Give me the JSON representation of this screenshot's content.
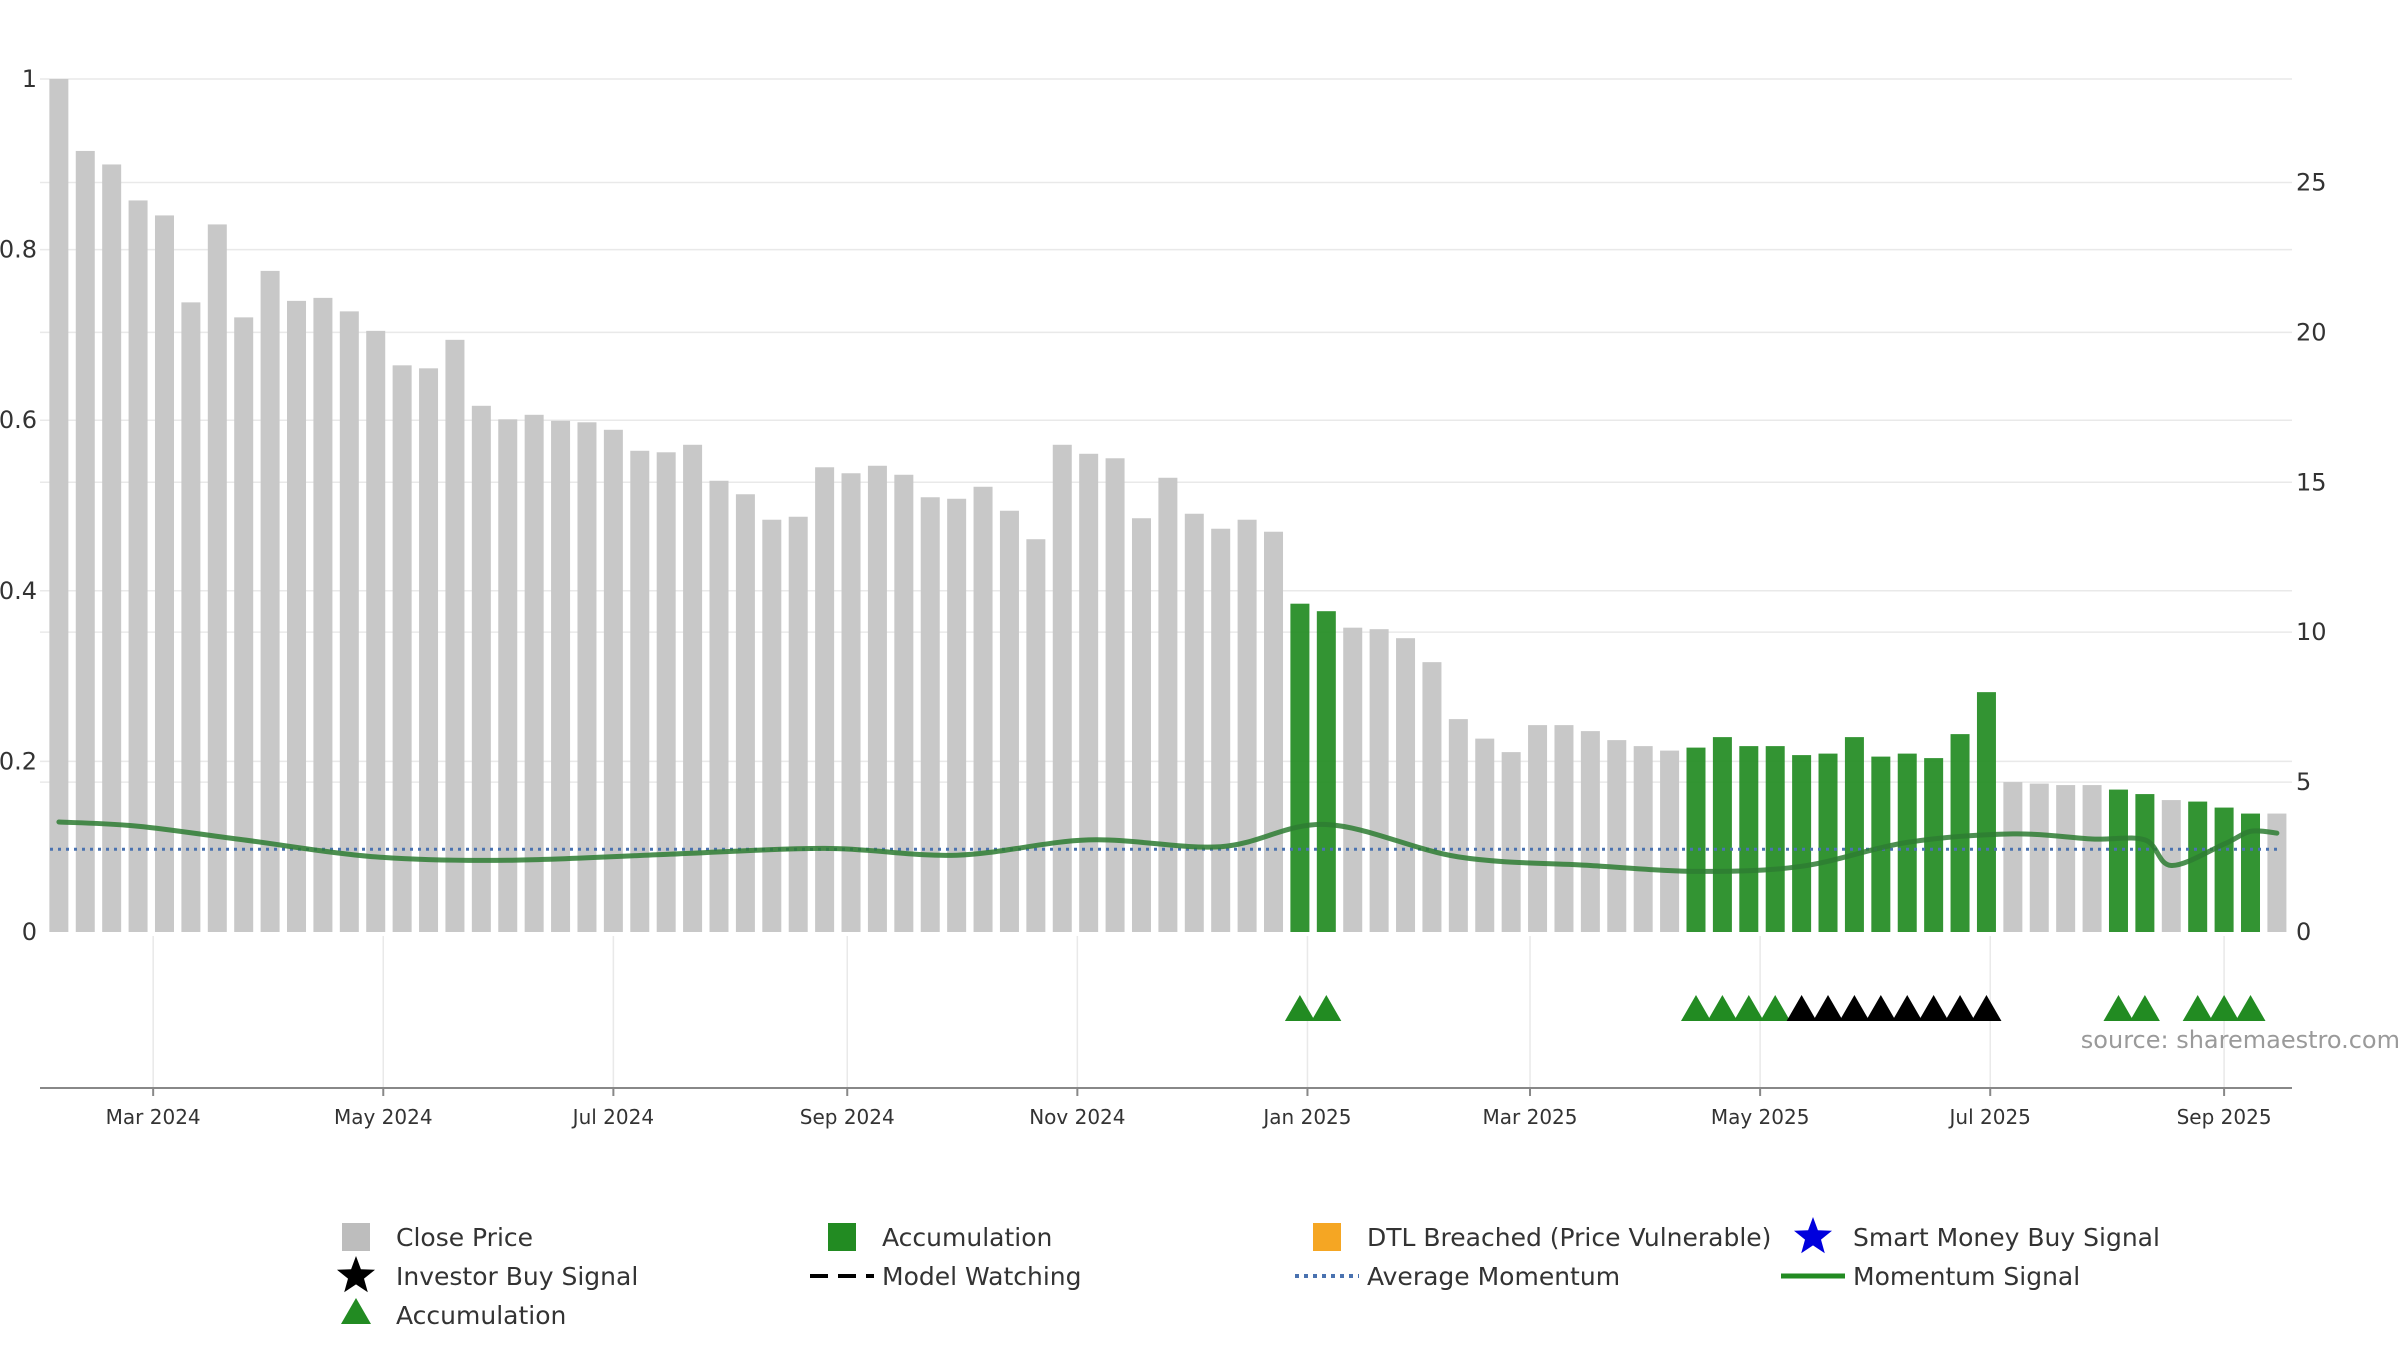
{
  "chart_data": {
    "type": "bar",
    "title": "",
    "xlabel": "",
    "ylabel": "",
    "left_axis": {
      "ylim": [
        0,
        1
      ],
      "ticks": [
        "0",
        "0.2",
        "0.4",
        "0.6",
        "0.8",
        "1"
      ]
    },
    "right_axis": {
      "ylim": [
        0,
        28.45
      ],
      "ticks": [
        "0",
        "5",
        "10",
        "15",
        "20",
        "25"
      ]
    },
    "x_tick_labels": [
      "Mar 2024",
      "May 2024",
      "Jul 2024",
      "Sep 2024",
      "Nov 2024",
      "Jan 2025",
      "Mar 2025",
      "May 2025",
      "Jul 2025",
      "Sep 2025"
    ],
    "grid": true,
    "legend_placement": "bottom",
    "source_note": "source: sharemaestro.com",
    "colors": {
      "close_price": "#c8c8c8",
      "accumulation": "#228b22",
      "dtl_breached": "#f5a623",
      "smart_money": "#0000dd",
      "investor_signal": "#000000",
      "momentum": "#2e7d32",
      "average_momentum": "#4a72b0",
      "grid": "#e9e9e9"
    },
    "close_price": [
      {
        "x": "2024-02-05",
        "value": 28.45,
        "status": "normal"
      },
      {
        "x": "2024-02-12",
        "value": 26.05,
        "status": "normal"
      },
      {
        "x": "2024-02-19",
        "value": 25.6,
        "status": "normal"
      },
      {
        "x": "2024-02-26",
        "value": 24.4,
        "status": "normal"
      },
      {
        "x": "2024-03-04",
        "value": 23.9,
        "status": "normal"
      },
      {
        "x": "2024-03-11",
        "value": 21.0,
        "status": "normal"
      },
      {
        "x": "2024-03-18",
        "value": 23.6,
        "status": "normal"
      },
      {
        "x": "2024-03-25",
        "value": 20.5,
        "status": "normal"
      },
      {
        "x": "2024-04-01",
        "value": 22.05,
        "status": "normal"
      },
      {
        "x": "2024-04-08",
        "value": 21.05,
        "status": "normal"
      },
      {
        "x": "2024-04-15",
        "value": 21.15,
        "status": "normal"
      },
      {
        "x": "2024-04-22",
        "value": 20.7,
        "status": "normal"
      },
      {
        "x": "2024-04-29",
        "value": 20.05,
        "status": "normal"
      },
      {
        "x": "2024-05-06",
        "value": 18.9,
        "status": "normal"
      },
      {
        "x": "2024-05-13",
        "value": 18.8,
        "status": "normal"
      },
      {
        "x": "2024-05-20",
        "value": 19.75,
        "status": "normal"
      },
      {
        "x": "2024-05-27",
        "value": 17.55,
        "status": "normal"
      },
      {
        "x": "2024-06-03",
        "value": 17.1,
        "status": "normal"
      },
      {
        "x": "2024-06-10",
        "value": 17.25,
        "status": "normal"
      },
      {
        "x": "2024-06-17",
        "value": 17.05,
        "status": "normal"
      },
      {
        "x": "2024-06-24",
        "value": 17.0,
        "status": "normal"
      },
      {
        "x": "2024-07-01",
        "value": 16.75,
        "status": "normal"
      },
      {
        "x": "2024-07-08",
        "value": 16.05,
        "status": "normal"
      },
      {
        "x": "2024-07-15",
        "value": 16.0,
        "status": "normal"
      },
      {
        "x": "2024-07-22",
        "value": 16.25,
        "status": "normal"
      },
      {
        "x": "2024-07-29",
        "value": 15.05,
        "status": "normal"
      },
      {
        "x": "2024-08-05",
        "value": 14.6,
        "status": "normal"
      },
      {
        "x": "2024-08-12",
        "value": 13.75,
        "status": "normal"
      },
      {
        "x": "2024-08-19",
        "value": 13.85,
        "status": "normal"
      },
      {
        "x": "2024-08-26",
        "value": 15.5,
        "status": "normal"
      },
      {
        "x": "2024-09-02",
        "value": 15.3,
        "status": "normal"
      },
      {
        "x": "2024-09-09",
        "value": 15.55,
        "status": "normal"
      },
      {
        "x": "2024-09-16",
        "value": 15.25,
        "status": "normal"
      },
      {
        "x": "2024-09-23",
        "value": 14.5,
        "status": "normal"
      },
      {
        "x": "2024-09-30",
        "value": 14.45,
        "status": "normal"
      },
      {
        "x": "2024-10-07",
        "value": 14.85,
        "status": "normal"
      },
      {
        "x": "2024-10-14",
        "value": 14.05,
        "status": "normal"
      },
      {
        "x": "2024-10-21",
        "value": 13.1,
        "status": "normal"
      },
      {
        "x": "2024-10-28",
        "value": 16.25,
        "status": "normal"
      },
      {
        "x": "2024-11-04",
        "value": 15.95,
        "status": "normal"
      },
      {
        "x": "2024-11-11",
        "value": 15.8,
        "status": "normal"
      },
      {
        "x": "2024-11-18",
        "value": 13.8,
        "status": "normal"
      },
      {
        "x": "2024-11-25",
        "value": 15.15,
        "status": "normal"
      },
      {
        "x": "2024-12-02",
        "value": 13.95,
        "status": "normal"
      },
      {
        "x": "2024-12-09",
        "value": 13.45,
        "status": "normal"
      },
      {
        "x": "2024-12-16",
        "value": 13.75,
        "status": "normal"
      },
      {
        "x": "2024-12-23",
        "value": 13.35,
        "status": "normal"
      },
      {
        "x": "2024-12-30",
        "value": 10.95,
        "status": "accumulation"
      },
      {
        "x": "2025-01-06",
        "value": 10.7,
        "status": "accumulation"
      },
      {
        "x": "2025-01-13",
        "value": 10.15,
        "status": "normal"
      },
      {
        "x": "2025-01-20",
        "value": 10.1,
        "status": "normal"
      },
      {
        "x": "2025-01-27",
        "value": 9.8,
        "status": "normal"
      },
      {
        "x": "2025-02-03",
        "value": 9.0,
        "status": "normal"
      },
      {
        "x": "2025-02-10",
        "value": 7.1,
        "status": "normal"
      },
      {
        "x": "2025-02-17",
        "value": 6.45,
        "status": "normal"
      },
      {
        "x": "2025-02-24",
        "value": 6.0,
        "status": "normal"
      },
      {
        "x": "2025-03-03",
        "value": 6.9,
        "status": "normal"
      },
      {
        "x": "2025-03-10",
        "value": 6.9,
        "status": "normal"
      },
      {
        "x": "2025-03-17",
        "value": 6.7,
        "status": "normal"
      },
      {
        "x": "2025-03-24",
        "value": 6.4,
        "status": "normal"
      },
      {
        "x": "2025-03-31",
        "value": 6.2,
        "status": "normal"
      },
      {
        "x": "2025-04-07",
        "value": 6.05,
        "status": "normal"
      },
      {
        "x": "2025-04-14",
        "value": 6.15,
        "status": "accumulation"
      },
      {
        "x": "2025-04-21",
        "value": 6.5,
        "status": "accumulation"
      },
      {
        "x": "2025-04-28",
        "value": 6.2,
        "status": "accumulation"
      },
      {
        "x": "2025-05-05",
        "value": 6.2,
        "status": "accumulation"
      },
      {
        "x": "2025-05-12",
        "value": 5.9,
        "status": "accumulation"
      },
      {
        "x": "2025-05-19",
        "value": 5.95,
        "status": "accumulation"
      },
      {
        "x": "2025-05-26",
        "value": 6.5,
        "status": "accumulation"
      },
      {
        "x": "2025-06-02",
        "value": 5.85,
        "status": "accumulation"
      },
      {
        "x": "2025-06-09",
        "value": 5.95,
        "status": "accumulation"
      },
      {
        "x": "2025-06-16",
        "value": 5.8,
        "status": "accumulation"
      },
      {
        "x": "2025-06-23",
        "value": 6.6,
        "status": "accumulation"
      },
      {
        "x": "2025-06-30",
        "value": 8.0,
        "status": "accumulation"
      },
      {
        "x": "2025-07-07",
        "value": 5.0,
        "status": "normal"
      },
      {
        "x": "2025-07-14",
        "value": 4.95,
        "status": "normal"
      },
      {
        "x": "2025-07-21",
        "value": 4.9,
        "status": "normal"
      },
      {
        "x": "2025-07-28",
        "value": 4.9,
        "status": "normal"
      },
      {
        "x": "2025-08-04",
        "value": 4.75,
        "status": "accumulation"
      },
      {
        "x": "2025-08-11",
        "value": 4.6,
        "status": "accumulation"
      },
      {
        "x": "2025-08-18",
        "value": 4.4,
        "status": "normal"
      },
      {
        "x": "2025-08-25",
        "value": 4.35,
        "status": "accumulation"
      },
      {
        "x": "2025-09-01",
        "value": 4.15,
        "status": "accumulation"
      },
      {
        "x": "2025-09-08",
        "value": 3.95,
        "status": "accumulation"
      },
      {
        "x": "2025-09-15",
        "value": 3.95,
        "status": "normal"
      }
    ],
    "momentum_signal": [
      {
        "x": "2024-02-05",
        "value": 0.129
      },
      {
        "x": "2024-02-26",
        "value": 0.124
      },
      {
        "x": "2024-03-25",
        "value": 0.108
      },
      {
        "x": "2024-04-29",
        "value": 0.088
      },
      {
        "x": "2024-06-03",
        "value": 0.084
      },
      {
        "x": "2024-07-15",
        "value": 0.091
      },
      {
        "x": "2024-08-26",
        "value": 0.098
      },
      {
        "x": "2024-09-30",
        "value": 0.09
      },
      {
        "x": "2024-11-04",
        "value": 0.108
      },
      {
        "x": "2024-12-09",
        "value": 0.1
      },
      {
        "x": "2025-01-06",
        "value": 0.126
      },
      {
        "x": "2025-02-10",
        "value": 0.088
      },
      {
        "x": "2025-03-17",
        "value": 0.078
      },
      {
        "x": "2025-04-14",
        "value": 0.071
      },
      {
        "x": "2025-05-12",
        "value": 0.077
      },
      {
        "x": "2025-06-09",
        "value": 0.105
      },
      {
        "x": "2025-07-07",
        "value": 0.115
      },
      {
        "x": "2025-07-28",
        "value": 0.109
      },
      {
        "x": "2025-08-11",
        "value": 0.108
      },
      {
        "x": "2025-08-18",
        "value": 0.078
      },
      {
        "x": "2025-09-01",
        "value": 0.103
      },
      {
        "x": "2025-09-08",
        "value": 0.118
      },
      {
        "x": "2025-09-15",
        "value": 0.116
      }
    ],
    "average_momentum": 0.097,
    "accumulation_markers": [
      "2024-12-30",
      "2025-01-06",
      "2025-04-14",
      "2025-04-21",
      "2025-04-28",
      "2025-05-05",
      "2025-08-04",
      "2025-08-11",
      "2025-08-25",
      "2025-09-01",
      "2025-09-08"
    ],
    "investor_markers": [
      "2025-05-12",
      "2025-05-19",
      "2025-05-26",
      "2025-06-02",
      "2025-06-09",
      "2025-06-16",
      "2025-06-23",
      "2025-06-30"
    ],
    "legend": [
      {
        "label": "Close Price",
        "symbol": "square",
        "color": "#bdbdbd"
      },
      {
        "label": "Accumulation",
        "symbol": "square",
        "color": "#228b22"
      },
      {
        "label": "DTL Breached (Price Vulnerable)",
        "symbol": "square",
        "color": "#f5a623"
      },
      {
        "label": "Smart Money Buy Signal",
        "symbol": "star",
        "color": "#0000dd"
      },
      {
        "label": "Investor Buy Signal",
        "symbol": "star",
        "color": "#000000"
      },
      {
        "label": "Model Watching",
        "symbol": "dashed",
        "color": "#000000"
      },
      {
        "label": "Average Momentum",
        "symbol": "dotted",
        "color": "#4a72b0"
      },
      {
        "label": "Momentum Signal",
        "symbol": "line",
        "color": "#228b22"
      },
      {
        "label": "Accumulation",
        "symbol": "triangle",
        "color": "#228b22"
      }
    ]
  }
}
